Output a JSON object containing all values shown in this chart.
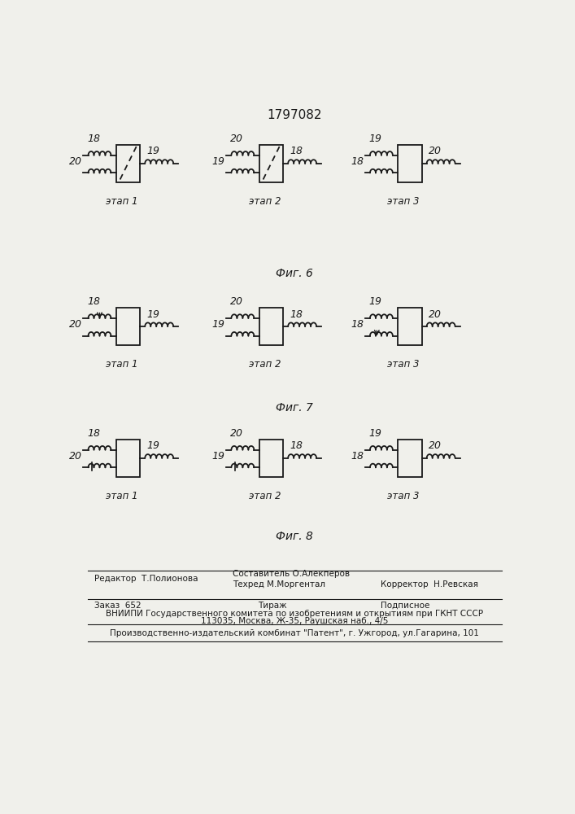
{
  "title": "1797082",
  "fig_labels": [
    "Фиг. 6",
    "Фиг. 7",
    "Фиг. 8"
  ],
  "bg_color": "#f0f0eb",
  "line_color": "#1a1a1a",
  "footer_editor": "Редактор  Т.Полионова",
  "footer_comp": "Составитель О.Алекперов",
  "footer_tech": "Техред М.Моргентал",
  "footer_corrector": "Корректор  Н.Ревская",
  "footer_order": "Заказ  652",
  "footer_tirazh": "Тираж",
  "footer_podpisnoe": "Подписное",
  "footer_vniipи": "ВНИИПИ Государственного комитета по изобретениям и открытиям при ГКНТ СССР",
  "footer_addr": "113035, Москва, Ж-35, Раушская наб., 4/5",
  "footer_patent": "Производственно-издательский комбинат \"Патент\", г. Ужгород, ул.Гагарина, 101"
}
